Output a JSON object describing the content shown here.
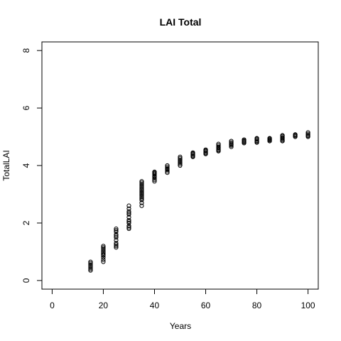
{
  "chart_data": {
    "type": "scatter",
    "title": "LAI Total",
    "xlabel": "Years",
    "ylabel": "TotalLAI",
    "xlim": [
      -4,
      104
    ],
    "ylim": [
      -0.3,
      8.3
    ],
    "xticks": [
      0,
      20,
      40,
      60,
      80,
      100
    ],
    "yticks": [
      0,
      2,
      4,
      6,
      8
    ],
    "grid": false,
    "point_style": "open-circle",
    "series": [
      {
        "x": [
          15,
          15,
          15,
          15,
          15,
          15,
          15,
          20,
          20,
          20,
          20,
          20,
          20,
          20,
          20,
          20,
          20,
          20,
          25,
          25,
          25,
          25,
          25,
          25,
          25,
          25,
          25,
          25,
          25,
          30,
          30,
          30,
          30,
          30,
          30,
          30,
          30,
          30,
          30,
          30,
          30,
          35,
          35,
          35,
          35,
          35,
          35,
          35,
          35,
          35,
          35,
          35,
          35,
          35,
          35,
          35,
          35,
          40,
          40,
          40,
          40,
          40,
          40,
          40,
          40,
          40,
          40,
          45,
          45,
          45,
          45,
          45,
          45,
          45,
          50,
          50,
          50,
          50,
          50,
          50,
          50,
          55,
          55,
          55,
          55,
          55,
          55,
          60,
          60,
          60,
          60,
          60,
          60,
          65,
          65,
          65,
          65,
          65,
          65,
          65,
          65,
          70,
          70,
          70,
          70,
          70,
          70,
          75,
          75,
          75,
          75,
          75,
          80,
          80,
          80,
          80,
          80,
          80,
          85,
          85,
          85,
          85,
          85,
          90,
          90,
          90,
          90,
          90,
          90,
          90,
          95,
          95,
          95,
          95,
          100,
          100,
          100,
          100,
          100
        ],
        "y": [
          0.35,
          0.4,
          0.45,
          0.5,
          0.55,
          0.6,
          0.65,
          0.65,
          0.72,
          0.8,
          0.87,
          0.95,
          1.0,
          1.05,
          1.1,
          1.15,
          1.2,
          0.9,
          1.15,
          1.2,
          1.25,
          1.3,
          1.4,
          1.5,
          1.55,
          1.6,
          1.7,
          1.75,
          1.8,
          1.8,
          1.85,
          1.9,
          2.0,
          2.05,
          2.1,
          2.2,
          2.3,
          2.35,
          2.4,
          2.5,
          2.6,
          2.6,
          2.7,
          2.8,
          2.85,
          2.9,
          2.95,
          3.0,
          3.05,
          3.1,
          3.15,
          3.2,
          3.25,
          3.3,
          3.35,
          3.4,
          3.45,
          3.45,
          3.5,
          3.55,
          3.6,
          3.62,
          3.65,
          3.7,
          3.72,
          3.75,
          3.78,
          3.75,
          3.8,
          3.85,
          3.88,
          3.9,
          3.95,
          4.0,
          4.0,
          4.05,
          4.1,
          4.15,
          4.2,
          4.25,
          4.3,
          4.3,
          4.33,
          4.36,
          4.4,
          4.42,
          4.45,
          4.4,
          4.43,
          4.46,
          4.5,
          4.52,
          4.55,
          4.5,
          4.53,
          4.56,
          4.6,
          4.62,
          4.65,
          4.7,
          4.75,
          4.65,
          4.7,
          4.73,
          4.76,
          4.8,
          4.85,
          4.78,
          4.81,
          4.84,
          4.87,
          4.9,
          4.8,
          4.83,
          4.86,
          4.9,
          4.93,
          4.95,
          4.85,
          4.88,
          4.9,
          4.93,
          4.95,
          4.85,
          4.88,
          4.92,
          4.95,
          4.98,
          5.02,
          5.05,
          5.0,
          5.03,
          5.06,
          5.08,
          5.0,
          5.03,
          5.06,
          5.1,
          5.15
        ]
      }
    ]
  }
}
